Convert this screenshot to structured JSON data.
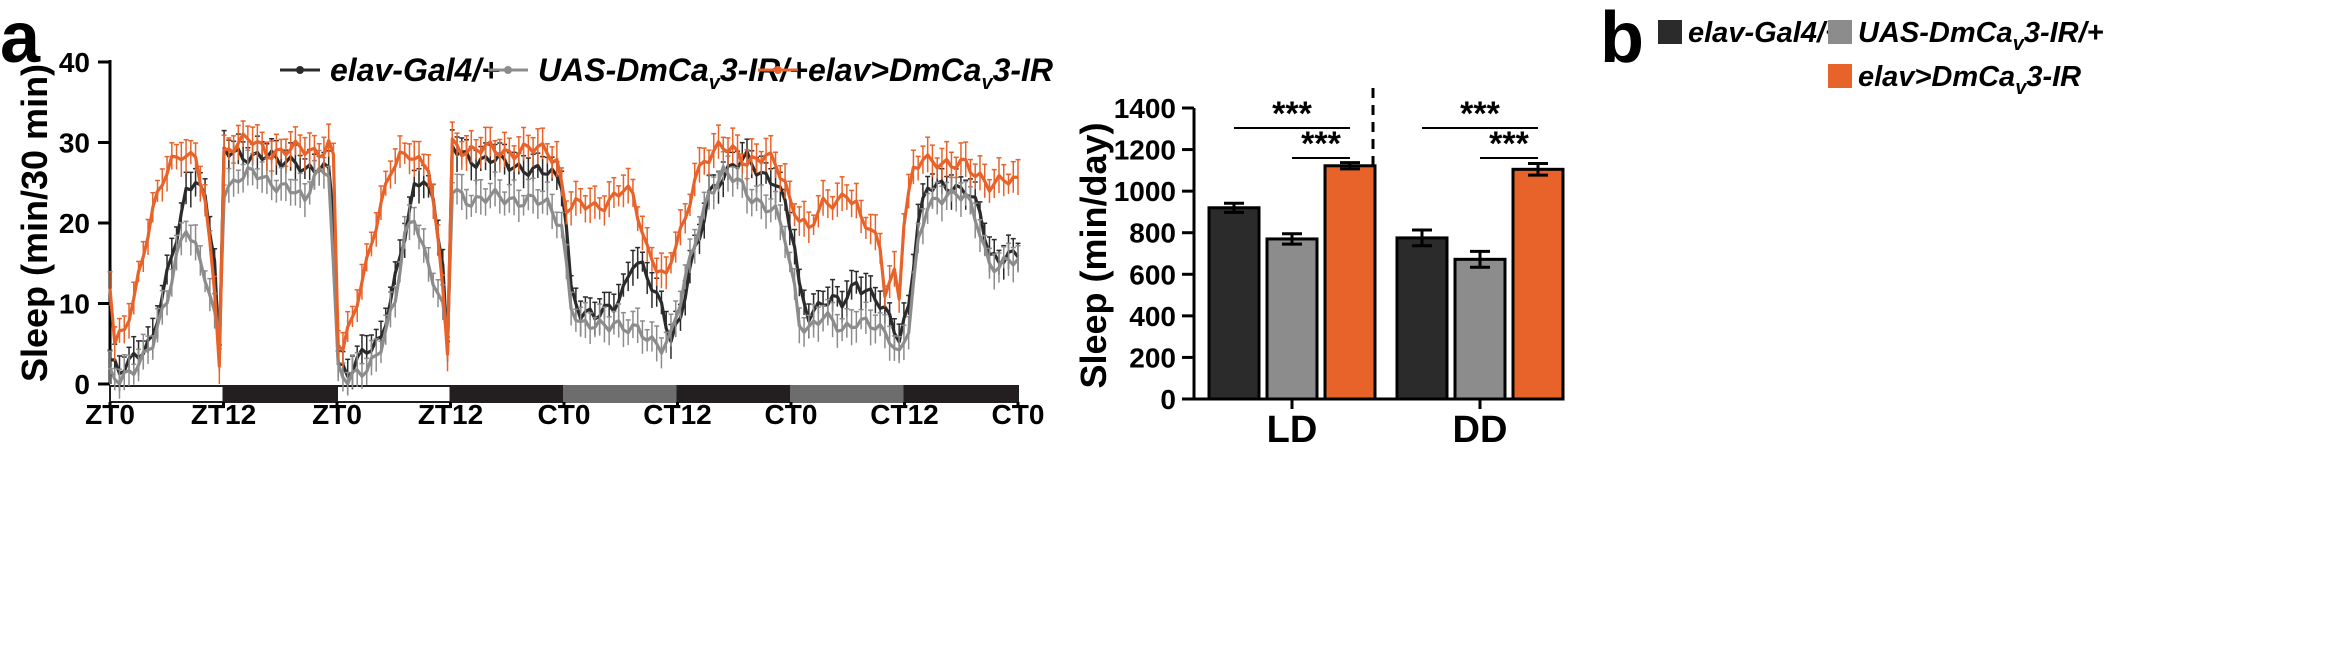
{
  "panel_a": {
    "letter": "a",
    "legend": [
      {
        "pre": "elav-Gal4/+",
        "sub": "",
        "post": "",
        "color": "#2b2b2b"
      },
      {
        "pre": "UAS-DmCa",
        "sub": "v",
        "post": "3-IR/+",
        "color": "#8c8c8c"
      },
      {
        "pre": "elav>DmCa",
        "sub": "v",
        "post": "3-IR",
        "color": "#e8632a"
      }
    ]
  },
  "panel_b": {
    "letter": "b",
    "legend": [
      {
        "pre": "elav-Gal4/+",
        "sub": "",
        "post": "",
        "color": "#2b2b2b"
      },
      {
        "pre": "UAS-DmCa",
        "sub": "v",
        "post": "3-IR/+",
        "color": "#8c8c8c"
      },
      {
        "pre": "elav>DmCa",
        "sub": "v",
        "post": "3-IR",
        "color": "#e8632a"
      }
    ],
    "significance": [
      "***",
      "***",
      "***",
      "***"
    ]
  },
  "chart_data": [
    {
      "type": "line",
      "ylabel": "Sleep (min/30 min)",
      "ylim": [
        0,
        40
      ],
      "yticks": [
        0,
        10,
        20,
        30,
        40
      ],
      "xticks": [
        "ZT0",
        "ZT12",
        "ZT0",
        "ZT12",
        "CT0",
        "CT12",
        "CT0",
        "CT12",
        "CT0"
      ],
      "light_bars": [
        "light",
        "dark",
        "light",
        "dark",
        "subjective-day",
        "dark",
        "subjective-day",
        "dark"
      ],
      "bins_per_day": 48,
      "series": [
        {
          "name": "elav-Gal4/+",
          "color": "#2b2b2b",
          "anchors": [
            [
              0,
              3
            ],
            [
              2,
              1
            ],
            [
              6,
              4
            ],
            [
              9,
              6
            ],
            [
              12,
              13
            ],
            [
              14,
              18
            ],
            [
              16,
              24
            ],
            [
              18,
              26
            ],
            [
              20,
              23
            ],
            [
              22,
              15
            ],
            [
              23,
              2
            ],
            [
              24,
              29
            ],
            [
              27,
              29
            ],
            [
              30,
              28
            ],
            [
              33,
              28
            ],
            [
              36,
              28
            ],
            [
              39,
              28
            ],
            [
              41,
              26
            ],
            [
              46,
              27
            ],
            [
              47,
              22
            ],
            [
              48,
              3
            ],
            [
              50,
              1
            ],
            [
              54,
              4
            ],
            [
              57,
              6
            ],
            [
              60,
              13
            ],
            [
              62,
              18
            ],
            [
              64,
              24
            ],
            [
              66,
              26
            ],
            [
              68,
              23
            ],
            [
              70,
              15
            ],
            [
              71,
              3
            ],
            [
              72,
              29
            ],
            [
              76,
              28
            ],
            [
              80,
              28
            ],
            [
              84,
              27
            ],
            [
              88,
              27
            ],
            [
              92,
              26
            ],
            [
              95,
              25
            ],
            [
              96,
              20
            ],
            [
              97,
              12
            ],
            [
              99,
              9
            ],
            [
              102,
              8
            ],
            [
              106,
              10
            ],
            [
              108,
              12
            ],
            [
              110,
              15
            ],
            [
              112,
              14
            ],
            [
              116,
              10
            ],
            [
              118,
              6
            ],
            [
              120,
              8
            ],
            [
              122,
              14
            ],
            [
              124,
              18
            ],
            [
              126,
              24
            ],
            [
              129,
              26
            ],
            [
              132,
              27
            ],
            [
              134,
              28
            ],
            [
              136,
              27
            ],
            [
              140,
              25
            ],
            [
              142,
              22
            ],
            [
              144,
              17
            ],
            [
              145,
              12
            ],
            [
              147,
              9
            ],
            [
              150,
              10
            ],
            [
              154,
              10
            ],
            [
              157,
              13
            ],
            [
              160,
              11
            ],
            [
              164,
              8
            ],
            [
              166,
              6
            ],
            [
              168,
              10
            ],
            [
              170,
              20
            ],
            [
              172,
              24
            ],
            [
              176,
              25
            ],
            [
              180,
              24
            ],
            [
              183,
              21
            ],
            [
              185,
              16
            ]
          ]
        },
        {
          "name": "UAS-DmCav3-IR/+",
          "color": "#8c8c8c",
          "anchors": [
            [
              0,
              1
            ],
            [
              2,
              0
            ],
            [
              6,
              3
            ],
            [
              9,
              5
            ],
            [
              12,
              10
            ],
            [
              14,
              16
            ],
            [
              16,
              20
            ],
            [
              18,
              17
            ],
            [
              20,
              13
            ],
            [
              22,
              8
            ],
            [
              23,
              6
            ],
            [
              24,
              24
            ],
            [
              27,
              26
            ],
            [
              30,
              26
            ],
            [
              33,
              25
            ],
            [
              36,
              25
            ],
            [
              39,
              24
            ],
            [
              41,
              22
            ],
            [
              43,
              26
            ],
            [
              46,
              27
            ],
            [
              47,
              15
            ],
            [
              48,
              2
            ],
            [
              50,
              0
            ],
            [
              54,
              2
            ],
            [
              57,
              5
            ],
            [
              60,
              10
            ],
            [
              62,
              18
            ],
            [
              64,
              21
            ],
            [
              66,
              17
            ],
            [
              68,
              13
            ],
            [
              70,
              9
            ],
            [
              71,
              5
            ],
            [
              72,
              24
            ],
            [
              76,
              23
            ],
            [
              80,
              23
            ],
            [
              84,
              23
            ],
            [
              88,
              23
            ],
            [
              92,
              22
            ],
            [
              95,
              20
            ],
            [
              96,
              15
            ],
            [
              97,
              10
            ],
            [
              99,
              7
            ],
            [
              102,
              7
            ],
            [
              106,
              8
            ],
            [
              108,
              7
            ],
            [
              112,
              6
            ],
            [
              116,
              5
            ],
            [
              118,
              6
            ],
            [
              120,
              10
            ],
            [
              122,
              15
            ],
            [
              124,
              20
            ],
            [
              126,
              24
            ],
            [
              129,
              26
            ],
            [
              132,
              25
            ],
            [
              134,
              24
            ],
            [
              136,
              23
            ],
            [
              140,
              21
            ],
            [
              142,
              18
            ],
            [
              144,
              12
            ],
            [
              145,
              8
            ],
            [
              147,
              7
            ],
            [
              150,
              8
            ],
            [
              154,
              7
            ],
            [
              157,
              8
            ],
            [
              160,
              7
            ],
            [
              164,
              6
            ],
            [
              166,
              4
            ],
            [
              168,
              7
            ],
            [
              170,
              17
            ],
            [
              172,
              22
            ],
            [
              176,
              24
            ],
            [
              180,
              23
            ],
            [
              183,
              19
            ],
            [
              185,
              15
            ]
          ]
        },
        {
          "name": "elav>DmCav3-IR",
          "color": "#e8632a",
          "anchors": [
            [
              0,
              12
            ],
            [
              1,
              5
            ],
            [
              3,
              7
            ],
            [
              5,
              11
            ],
            [
              7,
              16
            ],
            [
              9,
              21
            ],
            [
              11,
              25
            ],
            [
              13,
              28
            ],
            [
              15,
              29
            ],
            [
              17,
              28
            ],
            [
              18,
              28
            ],
            [
              20,
              22
            ],
            [
              22,
              12
            ],
            [
              23,
              3
            ],
            [
              24,
              29
            ],
            [
              27,
              30
            ],
            [
              30,
              30
            ],
            [
              33,
              29
            ],
            [
              36,
              29
            ],
            [
              39,
              29
            ],
            [
              42,
              29
            ],
            [
              44,
              29
            ],
            [
              46,
              30
            ],
            [
              47,
              28
            ],
            [
              48,
              5
            ],
            [
              49,
              4
            ],
            [
              51,
              8
            ],
            [
              53,
              13
            ],
            [
              55,
              18
            ],
            [
              57,
              22
            ],
            [
              59,
              26
            ],
            [
              61,
              28
            ],
            [
              63,
              29
            ],
            [
              65,
              28
            ],
            [
              67,
              27
            ],
            [
              68,
              22
            ],
            [
              70,
              12
            ],
            [
              71,
              4
            ],
            [
              72,
              30
            ],
            [
              76,
              29
            ],
            [
              80,
              29
            ],
            [
              84,
              29
            ],
            [
              88,
              29
            ],
            [
              92,
              29
            ],
            [
              94,
              28
            ],
            [
              95,
              25
            ],
            [
              96,
              22
            ],
            [
              99,
              22
            ],
            [
              102,
              22
            ],
            [
              105,
              23
            ],
            [
              108,
              24
            ],
            [
              110,
              23
            ],
            [
              111,
              21
            ],
            [
              113,
              17
            ],
            [
              115,
              15
            ],
            [
              117,
              13
            ],
            [
              119,
              17
            ],
            [
              121,
              20
            ],
            [
              123,
              26
            ],
            [
              125,
              28
            ],
            [
              128,
              29
            ],
            [
              131,
              29
            ],
            [
              134,
              28
            ],
            [
              136,
              28
            ],
            [
              138,
              28
            ],
            [
              140,
              27
            ],
            [
              142,
              25
            ],
            [
              143,
              23
            ],
            [
              145,
              21
            ],
            [
              147,
              19
            ],
            [
              150,
              22
            ],
            [
              153,
              23
            ],
            [
              155,
              24
            ],
            [
              157,
              22
            ],
            [
              158,
              20
            ],
            [
              160,
              19
            ],
            [
              162,
              17
            ],
            [
              163,
              12
            ],
            [
              165,
              14
            ],
            [
              166,
              11
            ],
            [
              167,
              20
            ],
            [
              169,
              26
            ],
            [
              171,
              28
            ],
            [
              174,
              28
            ],
            [
              177,
              27
            ],
            [
              180,
              27
            ],
            [
              183,
              26
            ],
            [
              185,
              25
            ]
          ]
        }
      ]
    },
    {
      "type": "bar",
      "ylabel": "Sleep (min/day)",
      "ylim": [
        0,
        1400
      ],
      "yticks": [
        0,
        200,
        400,
        600,
        800,
        1000,
        1200,
        1400
      ],
      "categories": [
        "LD",
        "DD"
      ],
      "series": [
        {
          "name": "elav-Gal4/+",
          "color": "#2b2b2b",
          "values": [
            920,
            775
          ],
          "errors": [
            22,
            38
          ]
        },
        {
          "name": "UAS-DmCav3-IR/+",
          "color": "#8c8c8c",
          "values": [
            770,
            672
          ],
          "errors": [
            25,
            38
          ]
        },
        {
          "name": "elav>DmCav3-IR",
          "color": "#e8632a",
          "values": [
            1122,
            1105
          ],
          "errors": [
            15,
            28
          ]
        }
      ]
    }
  ]
}
